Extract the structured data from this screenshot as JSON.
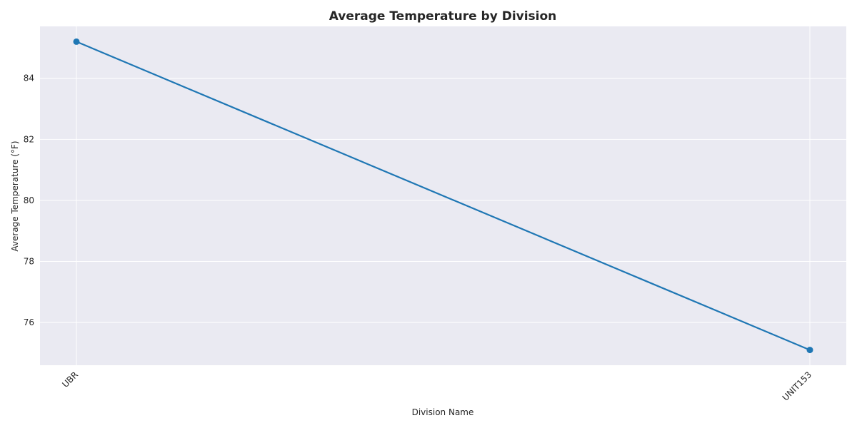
{
  "chart_data": {
    "type": "line",
    "title": "Average Temperature by Division",
    "xlabel": "Division Name",
    "ylabel": "Average Temperature (°F)",
    "categories": [
      "UBR",
      "UNIT153"
    ],
    "series": [
      {
        "values": [
          85.2,
          75.1
        ],
        "color": "#1f77b4"
      }
    ],
    "ylim": [
      74.6,
      85.7
    ],
    "yticks": [
      76,
      78,
      80,
      82,
      84
    ],
    "grid": true,
    "legend": "none",
    "marker": "circle",
    "plot_background": "#eaeaf2"
  }
}
